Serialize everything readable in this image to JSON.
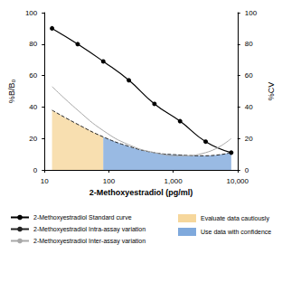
{
  "chart_data": {
    "type": "line",
    "x_label": "2-Methoxyestradiol (pg/ml)",
    "y_label": "%B/B₀",
    "y2_label": "%CV",
    "log": "x",
    "xlim": [
      10,
      10000
    ],
    "xticks": [
      10,
      100,
      {
        "value": 1000,
        "label": "1,000"
      },
      {
        "value": 10000,
        "label": "10,000"
      }
    ],
    "ylim": [
      0,
      100
    ],
    "yticks": [
      0,
      20,
      40,
      60,
      80,
      100
    ],
    "y2lim": [
      0,
      100
    ],
    "y2ticks": [
      0,
      20,
      40,
      60,
      80,
      100
    ],
    "grid": false,
    "legend": "bottom",
    "series": [
      {
        "name": "Evaluate data cautiously",
        "type": "area",
        "color": "#f6d79c",
        "axis": "y2",
        "x": [
          13.1,
          32.8,
          81.9
        ],
        "values": [
          38,
          29,
          21
        ]
      },
      {
        "name": "Use data with confidence",
        "type": "area",
        "color": "#7fa9dc",
        "axis": "y2",
        "x": [
          81.9,
          204.8,
          512,
          1280,
          3200,
          8000
        ],
        "values": [
          21,
          15,
          11,
          9.5,
          9,
          11
        ]
      },
      {
        "name": "2-Methoxyestradiol Standard curve",
        "type": "line",
        "color": "#000000",
        "marker": "circle",
        "line_style": "solid",
        "x": [
          13.1,
          32.8,
          81.9,
          204.8,
          512,
          1280,
          3200,
          8000
        ],
        "values": [
          90,
          80,
          69,
          57,
          42,
          31,
          18,
          11
        ]
      },
      {
        "name": "2-Methoxyestradiol Intra-assay variation",
        "type": "line",
        "color": "#222222",
        "line_style": "dashed",
        "axis": "y2",
        "x": [
          13.1,
          32.8,
          81.9,
          204.8,
          512,
          1280,
          3200,
          8000
        ],
        "values": [
          38,
          29,
          21,
          15,
          11,
          9.5,
          9,
          11
        ]
      },
      {
        "name": "2-Methoxyestradiol Inter-assay variation",
        "type": "line",
        "color": "#a8a8a8",
        "line_style": "solid",
        "axis": "y2",
        "x": [
          13.1,
          32.8,
          81.9,
          204.8,
          512,
          1280,
          3200,
          8000
        ],
        "values": [
          53,
          38,
          25,
          16,
          11,
          9,
          11,
          20
        ]
      }
    ]
  }
}
